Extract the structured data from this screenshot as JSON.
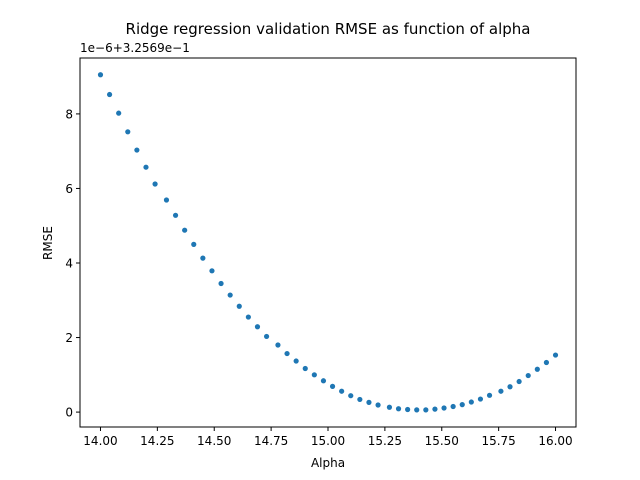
{
  "chart_data": {
    "type": "scatter",
    "title": "Ridge regression validation RMSE as function of alpha",
    "xlabel": "Alpha",
    "ylabel": "RMSE",
    "y_offset_label": "1e−6+3.2569e−1",
    "y_offset_value": 0.32569,
    "y_scale": 1e-06,
    "xlim": [
      13.91,
      16.09
    ],
    "ylim": [
      -0.4,
      9.5
    ],
    "x_ticks": [
      14.0,
      14.25,
      14.5,
      14.75,
      15.0,
      15.25,
      15.5,
      15.75,
      16.0
    ],
    "x_tick_labels": [
      "14.00",
      "14.25",
      "14.50",
      "14.75",
      "15.00",
      "15.25",
      "15.50",
      "15.75",
      "16.00"
    ],
    "y_ticks": [
      0,
      2,
      4,
      6,
      8
    ],
    "y_tick_labels": [
      "0",
      "2",
      "4",
      "6",
      "8"
    ],
    "grid": false,
    "marker_color": "#1f77b4",
    "series": [
      {
        "x": [
          14.0,
          14.04,
          14.08,
          14.12,
          14.16,
          14.2,
          14.24,
          14.29,
          14.33,
          14.37,
          14.41,
          14.45,
          14.49,
          14.53,
          14.57,
          14.61,
          14.65,
          14.69,
          14.73,
          14.78,
          14.82,
          14.86,
          14.9,
          14.94,
          14.98,
          15.02,
          15.06,
          15.1,
          15.14,
          15.18,
          15.22,
          15.27,
          15.31,
          15.35,
          15.39,
          15.43,
          15.47,
          15.51,
          15.55,
          15.59,
          15.63,
          15.67,
          15.71,
          15.76,
          15.8,
          15.84,
          15.88,
          15.92,
          15.96,
          16.0
        ],
        "values": [
          9.05,
          8.52,
          8.02,
          7.52,
          7.03,
          6.57,
          6.12,
          5.69,
          5.28,
          4.88,
          4.5,
          4.13,
          3.79,
          3.45,
          3.14,
          2.84,
          2.55,
          2.29,
          2.03,
          1.8,
          1.57,
          1.37,
          1.17,
          1.0,
          0.84,
          0.69,
          0.56,
          0.44,
          0.34,
          0.26,
          0.19,
          0.13,
          0.09,
          0.07,
          0.06,
          0.06,
          0.08,
          0.11,
          0.15,
          0.2,
          0.27,
          0.35,
          0.45,
          0.56,
          0.68,
          0.82,
          0.98,
          1.15,
          1.33,
          1.53
        ]
      }
    ]
  }
}
